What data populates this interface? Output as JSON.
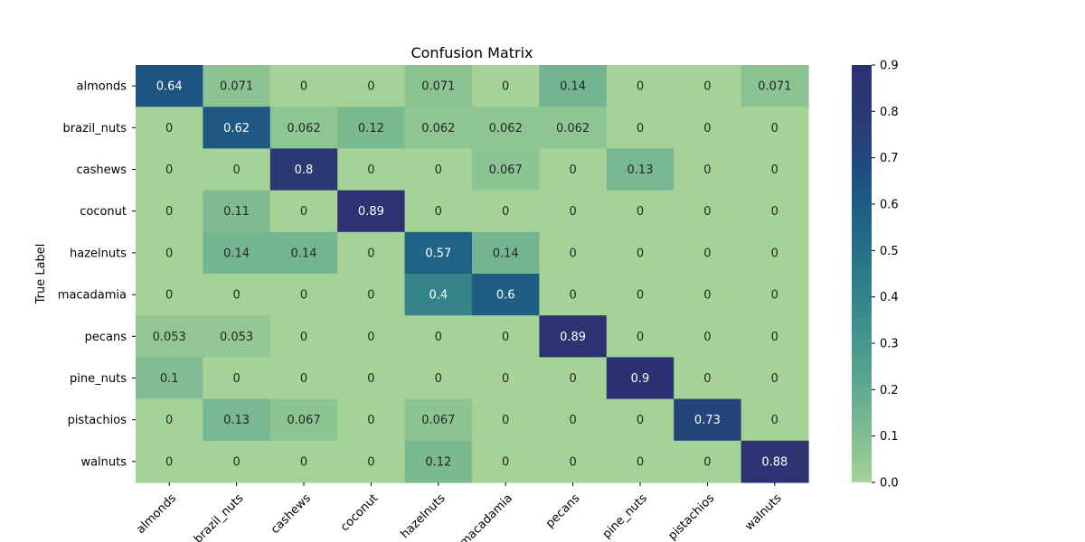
{
  "chart_data": {
    "type": "heatmap",
    "title": "Confusion Matrix",
    "xlabel": "",
    "ylabel": "True Label",
    "rows": [
      "almonds",
      "brazil_nuts",
      "cashews",
      "coconut",
      "hazelnuts",
      "macadamia",
      "pecans",
      "pine_nuts",
      "pistachios",
      "walnuts"
    ],
    "cols": [
      "almonds",
      "brazil_nuts",
      "cashews",
      "coconut",
      "hazelnuts",
      "macadamia",
      "pecans",
      "pine_nuts",
      "pistachios",
      "walnuts"
    ],
    "values": [
      [
        0.64,
        0.071,
        0,
        0,
        0.071,
        0,
        0.14,
        0,
        0,
        0.071
      ],
      [
        0,
        0.62,
        0.062,
        0.12,
        0.062,
        0.062,
        0.062,
        0,
        0,
        0
      ],
      [
        0,
        0,
        0.8,
        0,
        0,
        0.067,
        0,
        0.13,
        0,
        0
      ],
      [
        0,
        0.11,
        0,
        0.89,
        0,
        0,
        0,
        0,
        0,
        0
      ],
      [
        0,
        0.14,
        0.14,
        0,
        0.57,
        0.14,
        0,
        0,
        0,
        0
      ],
      [
        0,
        0,
        0,
        0,
        0.4,
        0.6,
        0,
        0,
        0,
        0
      ],
      [
        0.053,
        0.053,
        0,
        0,
        0,
        0,
        0.89,
        0,
        0,
        0
      ],
      [
        0.1,
        0,
        0,
        0,
        0,
        0,
        0,
        0.9,
        0,
        0
      ],
      [
        0,
        0.13,
        0.067,
        0,
        0.067,
        0,
        0,
        0,
        0.73,
        0
      ],
      [
        0,
        0,
        0,
        0,
        0.12,
        0,
        0,
        0,
        0,
        0.88
      ]
    ],
    "colorbar": {
      "min": 0,
      "max": 0.9,
      "ticks": [
        0.0,
        0.1,
        0.2,
        0.3,
        0.4,
        0.5,
        0.6,
        0.7,
        0.8,
        0.9
      ],
      "tick_labels": [
        "0.0",
        "0.1",
        "0.2",
        "0.3",
        "0.4",
        "0.5",
        "0.6",
        "0.7",
        "0.8",
        "0.9"
      ],
      "colormap": "crest",
      "color_stops": [
        "#a5d296",
        "#7dba91",
        "#59a590",
        "#3f8f8b",
        "#2d7a8a",
        "#1f6587",
        "#1e4c7f",
        "#2a3a73",
        "#2c3172"
      ]
    },
    "grid": false,
    "legend": "none"
  }
}
